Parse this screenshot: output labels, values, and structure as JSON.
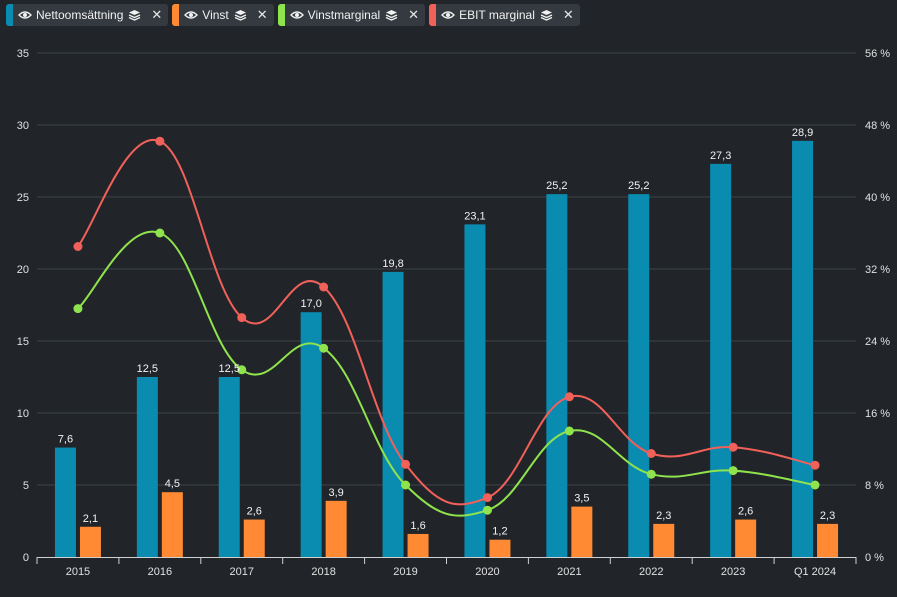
{
  "legend": [
    {
      "label": "Nettoomsättning",
      "color": "#0a8bb0"
    },
    {
      "label": "Vinst",
      "color": "#ff8a33"
    },
    {
      "label": "Vinstmarginal",
      "color": "#8fe34d"
    },
    {
      "label": "EBIT marginal",
      "color": "#f2605a"
    }
  ],
  "chart_data": {
    "type": "bar",
    "categories": [
      "2015",
      "2016",
      "2017",
      "2018",
      "2019",
      "2020",
      "2021",
      "2022",
      "2023",
      "Q1 2024"
    ],
    "series": [
      {
        "name": "Nettoomsättning",
        "type": "bar",
        "axis": "left",
        "color": "#0a8bb0",
        "values": [
          7.6,
          12.5,
          12.5,
          17.0,
          19.8,
          23.1,
          25.2,
          25.2,
          27.3,
          28.9
        ],
        "labels": [
          "7,6",
          "12,5",
          "12,5",
          "17,0",
          "19,8",
          "23,1",
          "25,2",
          "25,2",
          "27,3",
          "28,9"
        ]
      },
      {
        "name": "Vinst",
        "type": "bar",
        "axis": "left",
        "color": "#ff8a33",
        "values": [
          2.1,
          4.5,
          2.6,
          3.9,
          1.6,
          1.2,
          3.5,
          2.3,
          2.6,
          2.3
        ],
        "labels": [
          "2,1",
          "4,5",
          "2,6",
          "3,9",
          "1,6",
          "1,2",
          "3,5",
          "2,3",
          "2,6",
          "2,3"
        ]
      },
      {
        "name": "Vinstmarginal",
        "type": "line",
        "axis": "right",
        "color": "#8fe34d",
        "values": [
          27.6,
          36.0,
          20.8,
          23.2,
          8.0,
          5.2,
          14.0,
          9.2,
          9.6,
          8.0
        ]
      },
      {
        "name": "EBIT marginal",
        "type": "line",
        "axis": "right",
        "color": "#f2605a",
        "values": [
          34.5,
          46.2,
          26.6,
          30.0,
          10.3,
          6.6,
          17.8,
          11.5,
          12.2,
          10.2
        ]
      }
    ],
    "y_left": {
      "min": 0,
      "max": 35,
      "ticks": [
        "0",
        "5",
        "10",
        "15",
        "20",
        "25",
        "30",
        "35"
      ]
    },
    "y_right": {
      "min": 0,
      "max": 56,
      "ticks": [
        "0 %",
        "8 %",
        "16 %",
        "24 %",
        "32 %",
        "40 %",
        "48 %",
        "56 %"
      ]
    },
    "grid": true
  }
}
